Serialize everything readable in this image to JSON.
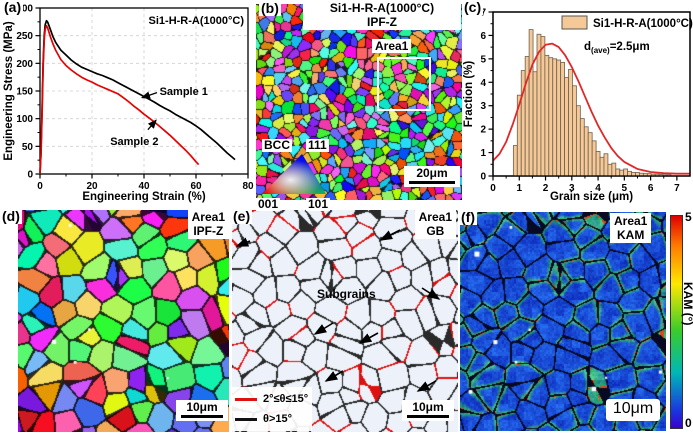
{
  "panels": {
    "a": {
      "label": "(a)"
    },
    "b": {
      "label": "(b)",
      "title1": "Si1-H-R-A(1000°C)",
      "title2": "IPF-Z",
      "area_label": "Area1",
      "phase_label": "BCC",
      "triangle": {
        "v001": "001",
        "v101": "101",
        "v111": "111"
      },
      "scalebar": "20μm"
    },
    "c": {
      "label": "(c)"
    },
    "d": {
      "label": "(d)",
      "title1": "Area1",
      "title2": "IPF-Z",
      "scalebar": "10μm"
    },
    "e": {
      "label": "(e)",
      "title1": "Area1",
      "title2": "GB",
      "annotation": "Subgrains",
      "legend": [
        {
          "color": "#dd1111",
          "label": "2°≤θ≤15°"
        },
        {
          "color": "#111111",
          "label": "θ>15°"
        }
      ],
      "scalebar": "10μm"
    },
    "f": {
      "label": "(f)",
      "title1": "Area1",
      "title2": "KAM",
      "colorbar": {
        "max": "5",
        "min": "0",
        "label": "KAM (°)"
      },
      "scalebar": "10μm"
    }
  },
  "chart_data": [
    {
      "type": "line",
      "panel": "a",
      "title": "Si1-H-R-A(1000°C)",
      "xlabel": "Engineering Strain (%)",
      "ylabel": "Engineering Stress (MPa)",
      "xlim": [
        0,
        80
      ],
      "ylim": [
        0,
        300
      ],
      "xticks": [
        0,
        20,
        40,
        60,
        80
      ],
      "yticks": [
        0,
        50,
        100,
        150,
        200,
        250,
        300
      ],
      "grid": true,
      "series": [
        {
          "name": "Sample 1",
          "color": "#000000",
          "x": [
            0,
            0.4,
            0.8,
            1.2,
            1.6,
            2,
            2.5,
            3,
            4,
            5,
            6,
            8,
            10,
            12,
            14,
            16,
            18,
            20,
            22,
            24,
            26,
            28,
            30,
            32,
            34,
            36,
            38,
            40,
            42,
            44,
            46,
            48,
            50,
            52,
            54,
            56,
            58,
            60,
            62,
            64,
            66,
            68,
            70,
            72,
            74,
            75
          ],
          "y": [
            0,
            40,
            120,
            200,
            250,
            270,
            277,
            274,
            261,
            248,
            238,
            224,
            215,
            206,
            199,
            193,
            189,
            185,
            181,
            178,
            174,
            170,
            165,
            160,
            155,
            150,
            145,
            140,
            135,
            130,
            124,
            119,
            114,
            108,
            103,
            98,
            93,
            87,
            80,
            72,
            64,
            56,
            47,
            38,
            30,
            26
          ]
        },
        {
          "name": "Sample 2",
          "color": "#e60000",
          "x": [
            0,
            0.4,
            0.8,
            1.2,
            1.6,
            2,
            2.5,
            3,
            4,
            5,
            6,
            8,
            10,
            12,
            14,
            16,
            18,
            20,
            22,
            24,
            26,
            28,
            30,
            32,
            34,
            36,
            38,
            40,
            42,
            44,
            46,
            48,
            50,
            52,
            54,
            56,
            58,
            60,
            61
          ],
          "y": [
            0,
            36,
            110,
            190,
            242,
            262,
            268,
            263,
            248,
            235,
            224,
            207,
            196,
            188,
            181,
            175,
            170,
            166,
            161,
            157,
            153,
            149,
            145,
            138,
            131,
            123,
            116,
            108,
            101,
            94,
            86,
            78,
            70,
            61,
            52,
            43,
            33,
            22,
            17
          ]
        }
      ],
      "annotations": [
        {
          "text": "Sample 1",
          "tx": 46,
          "ty": 150,
          "tailx": 45,
          "taily": 147,
          "tipx": 39.3,
          "tipy": 138
        },
        {
          "text": "Sample 2",
          "tx": 27,
          "ty": 60,
          "tailx": 41.5,
          "taily": 80,
          "tipx": 44.6,
          "tipy": 97
        }
      ]
    },
    {
      "type": "bar",
      "panel": "c",
      "legend_label": "Si1-H-R-A(1000°C)",
      "annotation": {
        "base": "d",
        "sub": "(ave)",
        "rest": "=2.5μm"
      },
      "xlabel": "Grain size (μm)",
      "ylabel": "Fraction (%)",
      "xlim": [
        0,
        7.5
      ],
      "ylim": [
        0,
        7
      ],
      "xticks": [
        0,
        1,
        2,
        3,
        4,
        5,
        6,
        7
      ],
      "yticks": [
        0,
        1,
        2,
        3,
        4,
        5,
        6,
        7
      ],
      "bar_width": 0.15,
      "bar_color": "#f5c997",
      "bar_edge": "#6f5f4e",
      "centers": [
        0.85,
        1.0,
        1.15,
        1.3,
        1.45,
        1.6,
        1.75,
        1.9,
        2.05,
        2.2,
        2.35,
        2.5,
        2.65,
        2.8,
        2.95,
        3.1,
        3.25,
        3.4,
        3.55,
        3.7,
        3.85,
        4.0,
        4.15,
        4.3,
        4.45,
        4.6,
        4.75,
        4.9,
        5.05,
        5.2,
        5.35,
        5.5,
        5.65,
        5.8,
        5.95,
        6.1,
        6.25,
        6.4,
        6.55,
        6.7
      ],
      "values": [
        1.3,
        3.45,
        4.5,
        5.1,
        6.25,
        4.45,
        6.05,
        5.95,
        5.15,
        5.05,
        5.0,
        4.95,
        4.85,
        4.2,
        4.55,
        3.85,
        3.0,
        2.45,
        2.1,
        1.85,
        1.5,
        1.05,
        0.8,
        0.95,
        0.5,
        0.55,
        0.3,
        0.25,
        0.3,
        0.2,
        0.15,
        0.15,
        0.12,
        0.1,
        0.1,
        0.08,
        0.08,
        0.06,
        0.05,
        0.05
      ],
      "fit": {
        "color": "#e02828",
        "x": [
          0,
          0.25,
          0.5,
          0.75,
          1.0,
          1.25,
          1.5,
          1.75,
          2.0,
          2.25,
          2.5,
          2.75,
          3.0,
          3.25,
          3.5,
          3.75,
          4.0,
          4.25,
          4.5,
          4.75,
          5.0,
          5.5,
          6.0,
          6.5,
          7.0,
          7.5
        ],
        "y": [
          0.65,
          0.95,
          1.45,
          2.2,
          3.05,
          3.95,
          4.75,
          5.3,
          5.6,
          5.65,
          5.5,
          5.15,
          4.65,
          4.05,
          3.4,
          2.75,
          2.15,
          1.65,
          1.2,
          0.85,
          0.6,
          0.3,
          0.17,
          0.12,
          0.1,
          0.1
        ]
      }
    }
  ]
}
